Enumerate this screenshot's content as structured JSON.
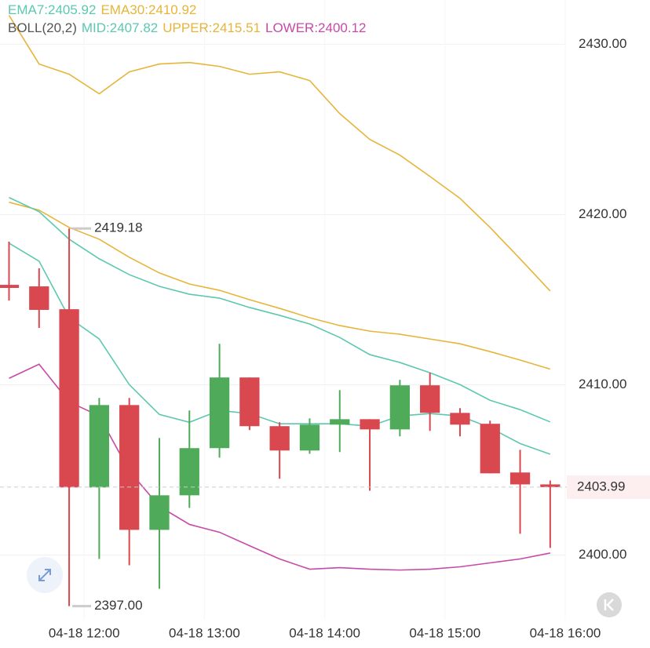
{
  "chart_data": {
    "type": "candlestick",
    "x": [
      "04-18 11:15",
      "04-18 11:30",
      "04-18 11:45",
      "04-18 12:00",
      "04-18 12:15",
      "04-18 12:30",
      "04-18 12:45",
      "04-18 13:00",
      "04-18 13:15",
      "04-18 13:30",
      "04-18 13:45",
      "04-18 14:00",
      "04-18 14:15",
      "04-18 14:30",
      "04-18 14:45",
      "04-18 15:00",
      "04-18 15:15",
      "04-18 15:30",
      "04-18 15:45"
    ],
    "open": [
      2415.87,
      2415.78,
      2414.44,
      2403.97,
      2408.81,
      2401.48,
      2403.51,
      2406.28,
      2410.43,
      2407.57,
      2406.14,
      2407.66,
      2407.98,
      2407.38,
      2409.97,
      2408.35,
      2407.71,
      2404.85,
      2404.15
    ],
    "high": [
      2418.41,
      2416.84,
      2419.18,
      2409.23,
      2409.23,
      2406.88,
      2408.49,
      2412.41,
      2410.43,
      2407.8,
      2408.03,
      2409.69,
      2407.98,
      2410.29,
      2410.71,
      2408.63,
      2407.89,
      2406.18,
      2404.38
    ],
    "low": [
      2414.95,
      2413.34,
      2397,
      2399.77,
      2399.4,
      2398.02,
      2402.77,
      2405.72,
      2407.34,
      2404.48,
      2405.95,
      2406.05,
      2403.78,
      2406.97,
      2407.29,
      2406.97,
      2404.8,
      2401.25,
      2400.42
    ],
    "close": [
      2415.69,
      2414.4,
      2403.97,
      2408.81,
      2401.48,
      2403.51,
      2406.28,
      2410.43,
      2407.57,
      2406.14,
      2407.66,
      2407.98,
      2407.38,
      2409.97,
      2408.35,
      2407.66,
      2404.8,
      2404.15,
      2403.99
    ],
    "up_color": "#4fab5a",
    "down_color": "#d9474f",
    "series": [
      {
        "name": "EMA7:2405.92",
        "color": "#5cc8b0",
        "values": [
          2418.32,
          2417.26,
          2413.94,
          2412.69,
          2410.01,
          2408.26,
          2407.8,
          2408.49,
          2408.31,
          2407.71,
          2407.71,
          2407.71,
          2407.57,
          2408.17,
          2408.31,
          2408.17,
          2407.48,
          2406.55,
          2405.92
        ]
      },
      {
        "name": "EMA30:2410.92",
        "color": "#e6b53a",
        "values": [
          2420.72,
          2420.26,
          2419.24,
          2418.55,
          2417.49,
          2416.57,
          2415.92,
          2415.55,
          2415.0,
          2414.49,
          2413.94,
          2413.48,
          2413.15,
          2412.97,
          2412.69,
          2412.41,
          2411.95,
          2411.45,
          2410.92
        ]
      },
      {
        "name": "MID:2407.82",
        "color": "#5cc8b0",
        "values": [
          2421.0,
          2420.17,
          2418.55,
          2417.4,
          2416.47,
          2415.78,
          2415.32,
          2415.09,
          2414.54,
          2414.08,
          2413.57,
          2412.78,
          2411.77,
          2411.31,
          2410.71,
          2410.01,
          2409.09,
          2408.54,
          2407.82
        ]
      },
      {
        "name": "UPPER:2415.51",
        "color": "#e6b53a",
        "values": [
          2431.7,
          2428.84,
          2428.24,
          2427.09,
          2428.38,
          2428.84,
          2428.93,
          2428.7,
          2428.24,
          2428.38,
          2427.87,
          2425.93,
          2424.41,
          2423.49,
          2422.24,
          2420.95,
          2419.24,
          2417.4,
          2415.51
        ]
      },
      {
        "name": "LOWER:2400.12",
        "color": "#c74aa8",
        "values": [
          2410.38,
          2411.21,
          2409.0,
          2408.17,
          2404.94,
          2402.86,
          2401.8,
          2401.34,
          2400.55,
          2399.77,
          2399.17,
          2399.26,
          2399.17,
          2399.12,
          2399.17,
          2399.31,
          2399.54,
          2399.77,
          2400.12
        ]
      }
    ],
    "boll_label": "BOLL(20,2)",
    "high_marker": 2419.18,
    "low_marker": {
      "value": 2397,
      "label": "2397.00"
    },
    "last_price": 2403.99,
    "xlim": [
      "04-18 11:18",
      "04-18 16:00"
    ],
    "xticks": [
      "04-18 12:00",
      "04-18 13:00",
      "04-18 14:00",
      "04-18 15:00",
      "04-18 16:00"
    ],
    "ylim": [
      2396.2,
      2432.6
    ],
    "yticks": [
      {
        "value": 2400,
        "label": "2400.00"
      },
      {
        "value": 2410,
        "label": "2410.00"
      },
      {
        "value": 2420,
        "label": "2420.00"
      },
      {
        "value": 2430,
        "label": "2430.00"
      }
    ],
    "grid": true
  }
}
